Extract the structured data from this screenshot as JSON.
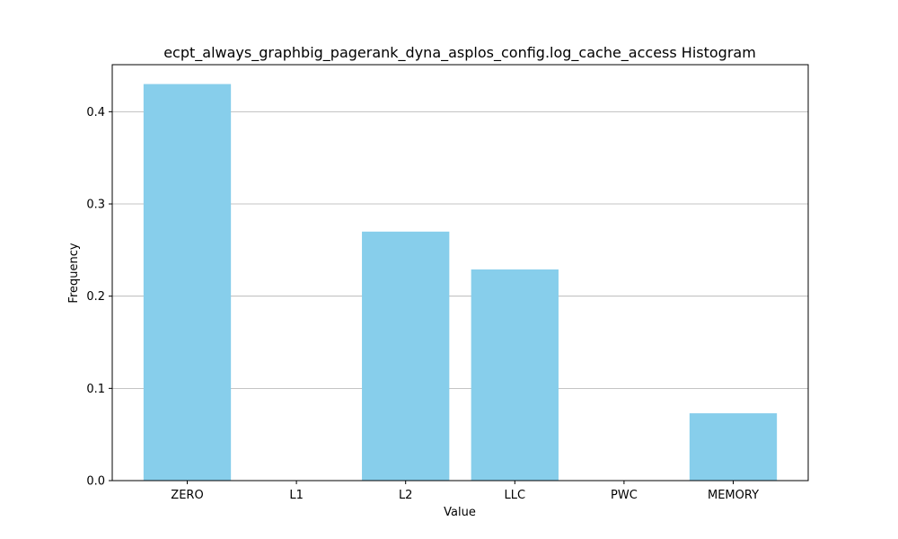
{
  "chart_data": {
    "type": "bar",
    "title": "ecpt_always_graphbig_pagerank_dyna_asplos_config.log_cache_access Histogram",
    "xlabel": "Value",
    "ylabel": "Frequency",
    "categories": [
      "ZERO",
      "L1",
      "L2",
      "LLC",
      "PWC",
      "MEMORY"
    ],
    "values": [
      0.43,
      0.0,
      0.27,
      0.229,
      0.0,
      0.073
    ],
    "ylim": [
      0,
      0.451
    ],
    "yticks": [
      0.0,
      0.1,
      0.2,
      0.3,
      0.4
    ],
    "ytick_labels": [
      "0.0",
      "0.1",
      "0.2",
      "0.3",
      "0.4"
    ],
    "grid": "y-major",
    "bar_color": "#87ceeb",
    "grid_color": "#b0b0b0"
  }
}
